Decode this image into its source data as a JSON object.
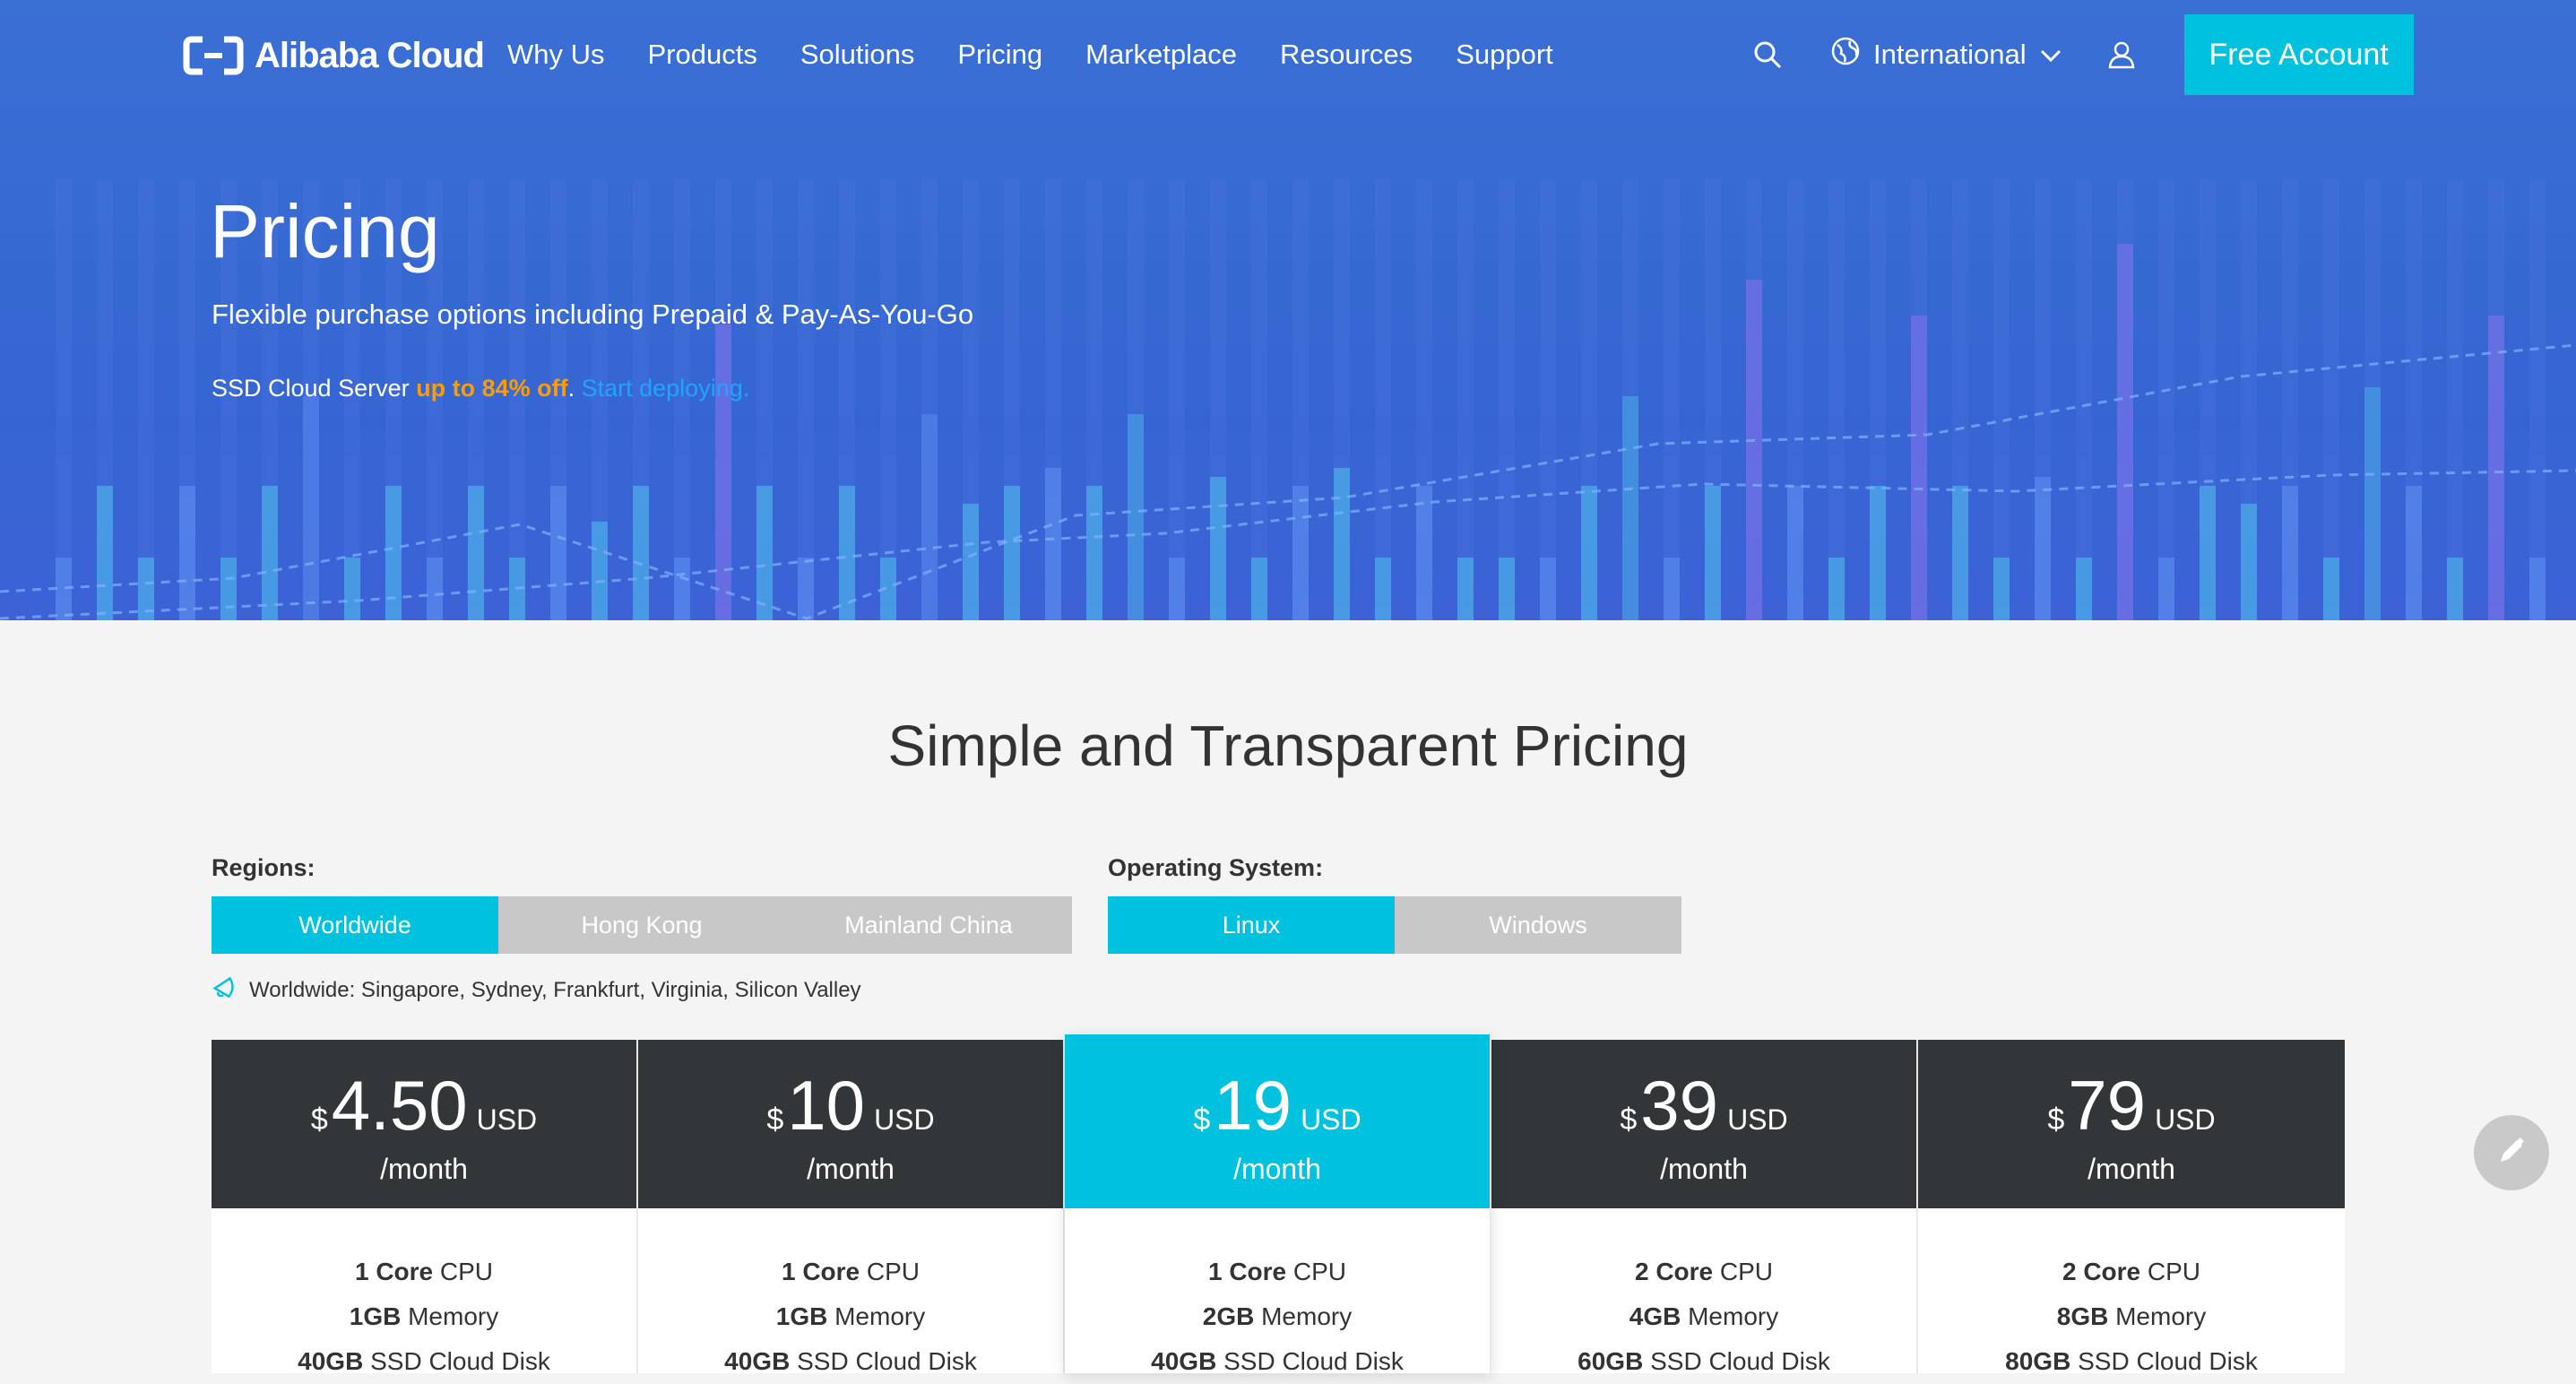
{
  "nav": {
    "logo_text": "Alibaba Cloud",
    "links": [
      "Why Us",
      "Products",
      "Solutions",
      "Pricing",
      "Marketplace",
      "Resources",
      "Support"
    ],
    "region_label": "International",
    "cta": "Free Account",
    "icons": {
      "search": "search-icon",
      "globe": "globe-icon",
      "user": "user-icon",
      "dropdown": "chevron-down-icon"
    }
  },
  "hero": {
    "title": "Pricing",
    "subtitle": "Flexible purchase options including Prepaid & Pay-As-You-Go",
    "promo_prefix": "SSD Cloud Server ",
    "promo_highlight": "up to 84% off",
    "promo_sep": ". ",
    "promo_link": "Start deploying."
  },
  "section": {
    "title": "Simple and Transparent Pricing",
    "regions_label": "Regions:",
    "regions": [
      "Worldwide",
      "Hong Kong",
      "Mainland China"
    ],
    "regions_selected": "Worldwide",
    "os_label": "Operating System:",
    "os": [
      "Linux",
      "Windows"
    ],
    "os_selected": "Linux",
    "region_note": "Worldwide: Singapore, Sydney, Frankfurt, Virginia, Silicon Valley"
  },
  "plans": [
    {
      "currency": "$",
      "amount": "4.50",
      "unit": "USD",
      "period": "/month",
      "cpu_value": "1 Core",
      "cpu_label": " CPU",
      "mem_value": "1GB",
      "mem_label": " Memory",
      "disk_value": "40GB",
      "disk_label": " SSD Cloud Disk"
    },
    {
      "currency": "$",
      "amount": "10",
      "unit": "USD",
      "period": "/month",
      "cpu_value": "1 Core",
      "cpu_label": " CPU",
      "mem_value": "1GB",
      "mem_label": " Memory",
      "disk_value": "40GB",
      "disk_label": " SSD Cloud Disk"
    },
    {
      "currency": "$",
      "amount": "19",
      "unit": "USD",
      "period": "/month",
      "cpu_value": "1 Core",
      "cpu_label": " CPU",
      "mem_value": "2GB",
      "mem_label": " Memory",
      "disk_value": "40GB",
      "disk_label": " SSD Cloud Disk"
    },
    {
      "currency": "$",
      "amount": "39",
      "unit": "USD",
      "period": "/month",
      "cpu_value": "2 Core",
      "cpu_label": " CPU",
      "mem_value": "4GB",
      "mem_label": " Memory",
      "disk_value": "60GB",
      "disk_label": " SSD Cloud Disk"
    },
    {
      "currency": "$",
      "amount": "79",
      "unit": "USD",
      "period": "/month",
      "cpu_value": "2 Core",
      "cpu_label": " CPU",
      "mem_value": "8GB",
      "mem_label": " Memory",
      "disk_value": "80GB",
      "disk_label": " SSD Cloud Disk"
    }
  ],
  "featured_plan": "19",
  "colors": {
    "hero": "#3566d2",
    "accent": "#00c1de",
    "plan_head": "#333638",
    "promo_orange": "#ff9c00",
    "link_blue": "#21a3ff"
  }
}
